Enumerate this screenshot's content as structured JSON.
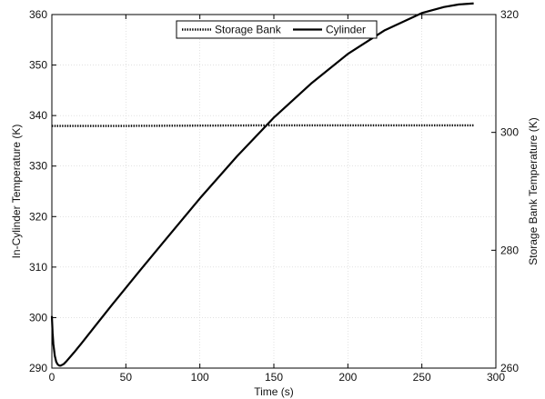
{
  "chart_data": {
    "type": "line",
    "title": "",
    "xlabel": "Time (s)",
    "ylabel": "In-Cylinder Temperature (K)",
    "y2label": "Storage Bank Temperature (K)",
    "xlim": [
      0,
      300
    ],
    "ylim": [
      290,
      360
    ],
    "y2lim": [
      260,
      320
    ],
    "xticks": [
      0,
      50,
      100,
      150,
      200,
      250,
      300
    ],
    "yticks": [
      290,
      300,
      310,
      320,
      330,
      340,
      350,
      360
    ],
    "y2ticks": [
      260,
      280,
      300,
      320
    ],
    "grid": true,
    "legend_position": "top-center",
    "series": [
      {
        "name": "Storage Bank",
        "axis": "right",
        "style": "dotted",
        "color": "#000000",
        "x": [
          0,
          50,
          100,
          150,
          200,
          250,
          285
        ],
        "y": [
          301.1,
          301.1,
          301.15,
          301.2,
          301.2,
          301.2,
          301.2
        ]
      },
      {
        "name": "Cylinder",
        "axis": "left",
        "style": "solid",
        "color": "#000000",
        "x": [
          0,
          0.5,
          1,
          2,
          3,
          4,
          5,
          6,
          8,
          10,
          15,
          20,
          30,
          40,
          50,
          60,
          75,
          100,
          125,
          150,
          175,
          200,
          225,
          250,
          265,
          275,
          285
        ],
        "y": [
          300.3,
          297.0,
          294.8,
          292.4,
          291.2,
          290.7,
          290.5,
          290.5,
          290.8,
          291.4,
          293.1,
          294.9,
          298.6,
          302.3,
          305.9,
          309.5,
          314.8,
          323.6,
          331.9,
          339.6,
          346.3,
          352.2,
          356.9,
          360.3,
          361.5,
          362.0,
          362.2
        ]
      }
    ]
  }
}
